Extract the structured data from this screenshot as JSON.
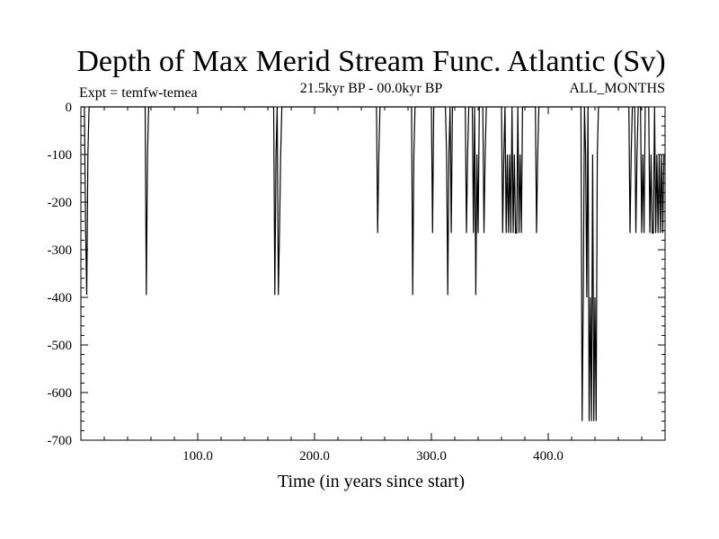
{
  "chart_data": {
    "type": "line",
    "title": "Depth of Max Merid Stream Func. Atlantic (Sv)",
    "subtitle_left": "Expt = temfw-temea",
    "subtitle_center": "21.5kyr BP - 00.0kyr BP",
    "subtitle_right": "ALL_MONTHS",
    "xlabel": "Time (in years since start)",
    "ylabel": "",
    "xlim": [
      0,
      500
    ],
    "ylim": [
      -700,
      0
    ],
    "x_ticks": [
      100,
      200,
      300,
      400
    ],
    "x_tick_labels": [
      "100.0",
      "200.0",
      "300.0",
      "400.0"
    ],
    "y_ticks": [
      0,
      -100,
      -200,
      -300,
      -400,
      -500,
      -600,
      -700
    ],
    "y_tick_labels": [
      "0",
      "-100",
      "-200",
      "-300",
      "-400",
      "-500",
      "-600",
      "-700"
    ],
    "grid": false,
    "series": [
      {
        "x": [
          0,
          1,
          2,
          3,
          4,
          5,
          6,
          7,
          8,
          55,
          56,
          57,
          58,
          59,
          165,
          166,
          167,
          168,
          169,
          170,
          171,
          172,
          173,
          253,
          254,
          255,
          256,
          283,
          284,
          285,
          286,
          300,
          301,
          302,
          312,
          313,
          314,
          315,
          316,
          317,
          318,
          329,
          330,
          331,
          332,
          335,
          336,
          337,
          338,
          339,
          340,
          341,
          344,
          345,
          346,
          347,
          360,
          361,
          362,
          363,
          364,
          365,
          366,
          367,
          368,
          369,
          370,
          371,
          372,
          373,
          374,
          375,
          376,
          377,
          378,
          389,
          390,
          391,
          392,
          428,
          429,
          430,
          431,
          432,
          433,
          434,
          435,
          436,
          437,
          438,
          439,
          440,
          441,
          442,
          443,
          469,
          470,
          471,
          472,
          474,
          475,
          476,
          477,
          479,
          480,
          481,
          482,
          483,
          484,
          486,
          487,
          488,
          489,
          490,
          491,
          492,
          493,
          494,
          495,
          496,
          497,
          498,
          499
        ],
        "y": [
          0,
          0,
          0,
          0,
          -250,
          -395,
          -100,
          0,
          0,
          0,
          -395,
          -100,
          0,
          0,
          0,
          -395,
          -100,
          0,
          -395,
          -260,
          -100,
          0,
          0,
          0,
          -265,
          -100,
          0,
          0,
          -395,
          -100,
          0,
          0,
          -265,
          0,
          0,
          -100,
          -395,
          -100,
          0,
          -265,
          0,
          0,
          -265,
          -100,
          0,
          0,
          -265,
          0,
          -395,
          -100,
          -265,
          0,
          0,
          -265,
          -100,
          0,
          0,
          -265,
          -100,
          0,
          -265,
          -100,
          -265,
          -100,
          -265,
          0,
          -265,
          -100,
          -265,
          -265,
          0,
          -265,
          -100,
          -265,
          0,
          0,
          -265,
          -100,
          0,
          0,
          -660,
          -400,
          0,
          -100,
          -400,
          0,
          -660,
          -400,
          -660,
          -100,
          -660,
          -400,
          -660,
          -100,
          0,
          0,
          -265,
          -100,
          0,
          0,
          -265,
          -100,
          0,
          0,
          -265,
          -100,
          -265,
          0,
          0,
          0,
          -265,
          -100,
          -265,
          -265,
          0,
          -265,
          -100,
          -265,
          -100,
          -265,
          -100,
          -265,
          -100
        ]
      }
    ]
  }
}
